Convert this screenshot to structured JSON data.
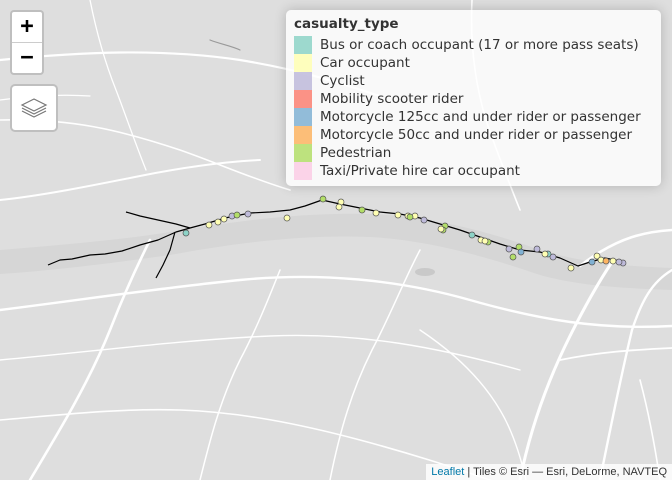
{
  "map": {
    "basemap_color": "#dedede",
    "road_color": "#ffffff",
    "water_color": "#c9c9c9",
    "route_color": "#000000"
  },
  "controls": {
    "zoom_in_label": "+",
    "zoom_out_label": "−",
    "layers_icon": "layers-icon"
  },
  "legend": {
    "title": "casualty_type",
    "items": [
      {
        "label": "Bus or coach occupant (17 or more pass seats)",
        "color": "#8dd3c7"
      },
      {
        "label": "Car occupant",
        "color": "#ffffb3"
      },
      {
        "label": "Cyclist",
        "color": "#bebada"
      },
      {
        "label": "Mobility scooter rider",
        "color": "#fb8072"
      },
      {
        "label": "Motorcycle 125cc and under rider or passenger",
        "color": "#80b1d3"
      },
      {
        "label": "Motorcycle 50cc and under rider or passenger",
        "color": "#fdb462"
      },
      {
        "label": "Pedestrian",
        "color": "#b3de69"
      },
      {
        "label": "Taxi/Private hire car occupant",
        "color": "#fccde5"
      }
    ]
  },
  "casualty_points": [
    {
      "type": "Pedestrian"
    },
    {
      "type": "Car occupant"
    },
    {
      "type": "Car occupant"
    },
    {
      "type": "Bus or coach occupant (17 or more pass seats)"
    },
    {
      "type": "Car occupant"
    },
    {
      "type": "Car occupant"
    },
    {
      "type": "Car occupant"
    },
    {
      "type": "Cyclist"
    },
    {
      "type": "Cyclist"
    },
    {
      "type": "Pedestrian"
    },
    {
      "type": "Car occupant"
    },
    {
      "type": "Car occupant"
    },
    {
      "type": "Pedestrian"
    },
    {
      "type": "Car occupant"
    },
    {
      "type": "Car occupant"
    },
    {
      "type": "Car occupant"
    },
    {
      "type": "Pedestrian"
    },
    {
      "type": "Pedestrian"
    },
    {
      "type": "Cyclist"
    },
    {
      "type": "Pedestrian"
    },
    {
      "type": "Car occupant"
    },
    {
      "type": "Bus or coach occupant (17 or more pass seats)"
    },
    {
      "type": "Car occupant"
    },
    {
      "type": "Pedestrian"
    },
    {
      "type": "Car occupant"
    },
    {
      "type": "Cyclist"
    },
    {
      "type": "Pedestrian"
    },
    {
      "type": "Motorcycle 125cc and under rider or passenger"
    },
    {
      "type": "Pedestrian"
    },
    {
      "type": "Cyclist"
    },
    {
      "type": "Bus or coach occupant (17 or more pass seats)"
    },
    {
      "type": "Cyclist"
    },
    {
      "type": "Car occupant"
    },
    {
      "type": "Car occupant"
    },
    {
      "type": "Car occupant"
    },
    {
      "type": "Car occupant"
    },
    {
      "type": "Motorcycle 125cc and under rider or passenger"
    },
    {
      "type": "Motorcycle 50cc and under rider or passenger"
    },
    {
      "type": "Car occupant"
    },
    {
      "type": "Cyclist"
    },
    {
      "type": "Cyclist"
    }
  ],
  "attribution": {
    "link": "Leaflet",
    "text": " | Tiles © Esri — Esri, DeLorme, NAVTEQ"
  }
}
